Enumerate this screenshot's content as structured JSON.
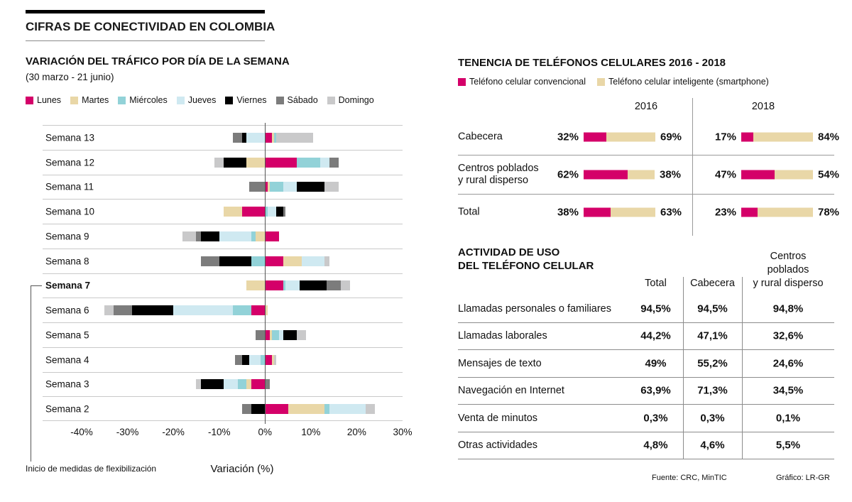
{
  "page": {
    "title": "CIFRAS DE CONECTIVIDAD EN COLOMBIA",
    "footer": {
      "source": "Fuente: CRC, MinTIC",
      "credit": "Gráfico: LR-GR"
    }
  },
  "colors": {
    "magenta": "#d40069",
    "tan": "#e9d7a7",
    "teal": "#92d2d8",
    "lightblue": "#cfe9f1",
    "black": "#000000",
    "darkgray": "#7c7c7c",
    "lightgray": "#c9c9ca"
  },
  "chart_data": [
    {
      "id": "traffic-by-week",
      "type": "bar",
      "stacked": true,
      "orientation": "horizontal",
      "title": "VARIACIÓN DEL TRÁFICO POR DÍA DE LA SEMANA",
      "subtitle": "(30 marzo - 21 junio)",
      "xlabel": "Variación (%)",
      "xlim": [
        -40,
        30
      ],
      "xticks": [
        "-40%",
        "-30%",
        "-20%",
        "-10%",
        "0%",
        "10%",
        "20%",
        "30%"
      ],
      "grid": false,
      "annotation": {
        "text": "Inicio de medidas de flexibilización",
        "target": "Semana 7"
      },
      "categories": [
        "Semana 13",
        "Semana 12",
        "Semana 11",
        "Semana 10",
        "Semana 9",
        "Semana 8",
        "Semana 7",
        "Semana 6",
        "Semana 5",
        "Semana 4",
        "Semana 3",
        "Semana 2"
      ],
      "highlight_category": "Semana 7",
      "series": [
        {
          "name": "Lunes",
          "color": "#d40069",
          "values": [
            1.5,
            7,
            0.5,
            -5,
            3,
            4,
            4,
            -3,
            1,
            1.5,
            -3,
            5
          ]
        },
        {
          "name": "Martes",
          "color": "#e9d7a7",
          "values": [
            0.5,
            -4,
            0.5,
            -4,
            -2,
            4,
            -4,
            0.5,
            0.5,
            0.5,
            -1,
            8
          ]
        },
        {
          "name": "Miércoles",
          "color": "#92d2d8",
          "values": [
            0.5,
            5,
            3,
            0.5,
            -1,
            -3,
            0.5,
            -4,
            1.5,
            -1,
            -2,
            1
          ]
        },
        {
          "name": "Jueves",
          "color": "#cfe9f1",
          "values": [
            -4,
            2,
            3,
            2,
            -7,
            5,
            3,
            -13,
            1,
            -2.5,
            -3,
            8
          ]
        },
        {
          "name": "Viernes",
          "color": "#000000",
          "values": [
            -1,
            -5,
            6,
            1.5,
            -4,
            -7,
            6,
            -9,
            3,
            -1.5,
            -5,
            -3
          ]
        },
        {
          "name": "Sábado",
          "color": "#7c7c7c",
          "values": [
            -2,
            2,
            -3.5,
            0.5,
            -1,
            -4,
            3,
            -4,
            -2,
            -1.5,
            1,
            -2
          ]
        },
        {
          "name": "Domingo",
          "color": "#c9c9ca",
          "values": [
            8,
            -2,
            3,
            0,
            -3,
            1,
            2,
            -2,
            2,
            0.5,
            -1,
            2
          ]
        }
      ]
    },
    {
      "id": "phone-ownership",
      "type": "bar",
      "stacked": true,
      "title": "TENENCIA DE TELÉFONOS CELULARES 2016 - 2018",
      "legend": [
        {
          "label": "Teléfono celular convencional",
          "color": "#d40069"
        },
        {
          "label": "Teléfono celular inteligente (smartphone)",
          "color": "#e9d7a7"
        }
      ],
      "years": [
        "2016",
        "2018"
      ],
      "rows": [
        {
          "label_lines": [
            "Cabecera"
          ],
          "y2016": {
            "convencional": 32,
            "smartphone": 69
          },
          "y2018": {
            "convencional": 17,
            "smartphone": 84
          }
        },
        {
          "label_lines": [
            "Centros poblados",
            "y rural disperso"
          ],
          "y2016": {
            "convencional": 62,
            "smartphone": 38
          },
          "y2018": {
            "convencional": 47,
            "smartphone": 54
          }
        },
        {
          "label_lines": [
            "Total"
          ],
          "y2016": {
            "convencional": 38,
            "smartphone": 63
          },
          "y2018": {
            "convencional": 23,
            "smartphone": 78
          }
        }
      ]
    },
    {
      "id": "phone-activity",
      "type": "table",
      "title_lines": [
        "ACTIVIDAD DE USO",
        "DEL TELÉFONO CELULAR"
      ],
      "columns": [
        "Total",
        "Cabecera",
        "Centros poblados y rural disperso"
      ],
      "column_lines": [
        [
          "Total"
        ],
        [
          "Cabecera"
        ],
        [
          "Centros",
          "poblados",
          "y rural disperso"
        ]
      ],
      "rows": [
        {
          "label": "Llamadas personales o familiares",
          "values": [
            "94,5%",
            "94,5%",
            "94,8%"
          ]
        },
        {
          "label": "Llamadas laborales",
          "values": [
            "44,2%",
            "47,1%",
            "32,6%"
          ]
        },
        {
          "label": "Mensajes de texto",
          "values": [
            "49%",
            "55,2%",
            "24,6%"
          ]
        },
        {
          "label": "Navegación en Internet",
          "values": [
            "63,9%",
            "71,3%",
            "34,5%"
          ]
        },
        {
          "label": "Venta de minutos",
          "values": [
            "0,3%",
            "0,3%",
            "0,1%"
          ]
        },
        {
          "label": "Otras actividades",
          "values": [
            "4,8%",
            "4,6%",
            "5,5%"
          ]
        }
      ]
    }
  ]
}
